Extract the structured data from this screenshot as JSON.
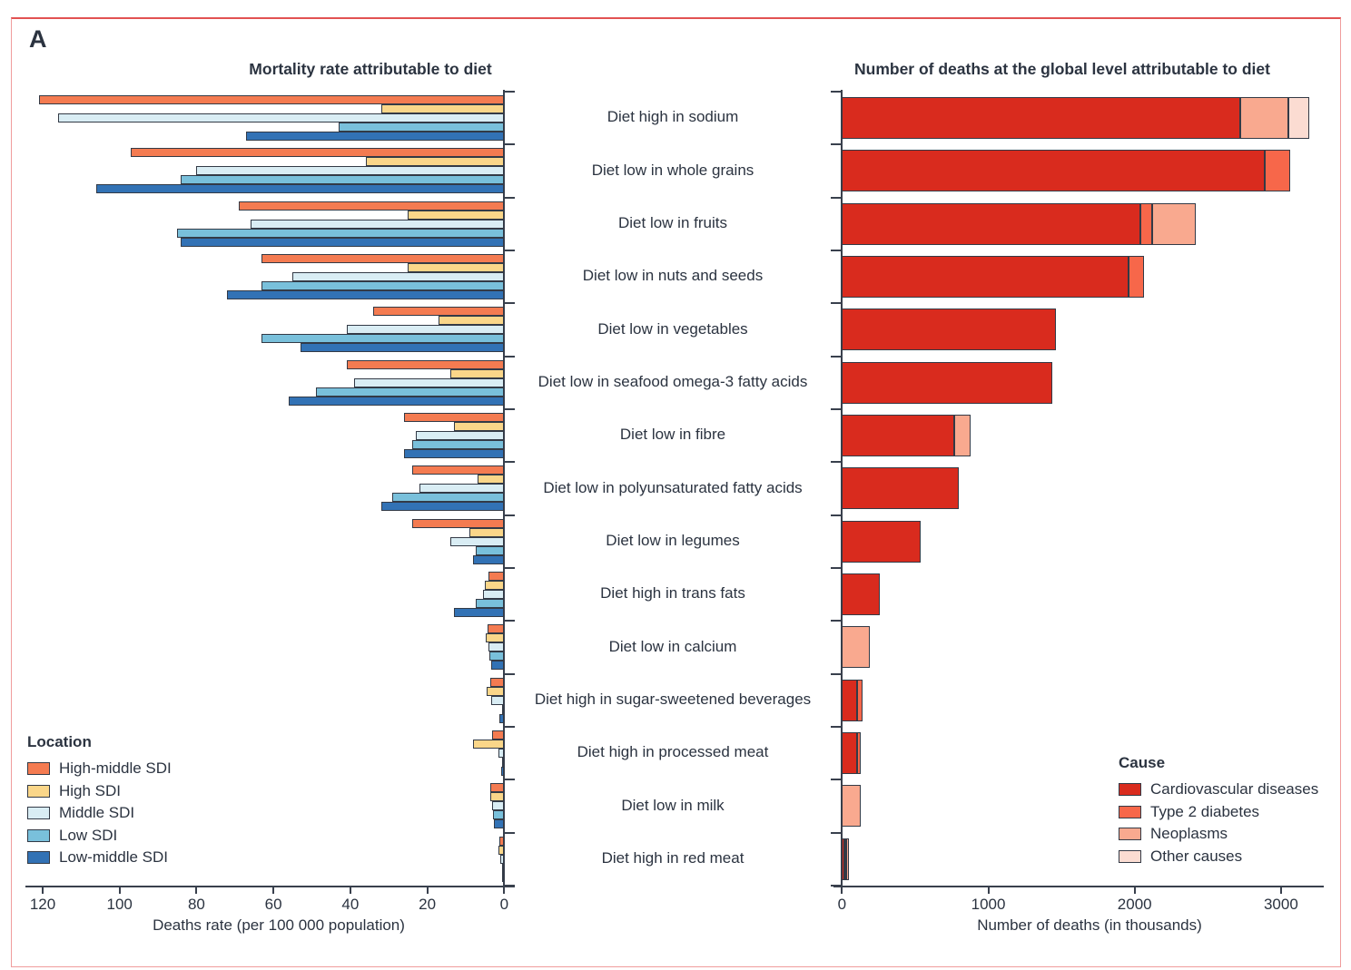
{
  "panel_label": "A",
  "categories": [
    "Diet high in sodium",
    "Diet low in whole grains",
    "Diet low in fruits",
    "Diet low in nuts and seeds",
    "Diet low in vegetables",
    "Diet low in seafood omega-3 fatty acids",
    "Diet low in fibre",
    "Diet low in polyunsaturated fatty acids",
    "Diet low in legumes",
    "Diet high in trans fats",
    "Diet low in calcium",
    "Diet high in sugar-sweetened beverages",
    "Diet high in processed meat",
    "Diet low in milk",
    "Diet high in red meat"
  ],
  "chart_data": [
    {
      "type": "bar",
      "orientation": "horizontal",
      "direction": "right-to-left",
      "title": "Mortality rate attributable to diet",
      "xlabel": "Deaths rate (per 100 000 population)",
      "xticks": [
        120,
        100,
        80,
        60,
        40,
        20,
        0
      ],
      "xlim": [
        0,
        120
      ],
      "legend_title": "Location",
      "grid": false,
      "series": [
        {
          "name": "High-middle SDI",
          "color": "#F47B51",
          "values": [
            121,
            97,
            69,
            63,
            34,
            41,
            26,
            24,
            24,
            4,
            4.3,
            3.7,
            3.2,
            3.5,
            1.2
          ]
        },
        {
          "name": "High SDI",
          "color": "#FAD689",
          "values": [
            32,
            36,
            25,
            25,
            17,
            14,
            13,
            7,
            9,
            5,
            4.7,
            4.6,
            8,
            3.5,
            1.6
          ]
        },
        {
          "name": "Middle SDI",
          "color": "#D9EDF4",
          "values": [
            116,
            80,
            66,
            55,
            41,
            39,
            23,
            22,
            14,
            5.5,
            4,
            3.3,
            1.5,
            3.2,
            0.9
          ]
        },
        {
          "name": "Low SDI",
          "color": "#79C0DB",
          "values": [
            43,
            84,
            85,
            63,
            63,
            49,
            24,
            29,
            7.5,
            7.5,
            3.9,
            0.4,
            0.3,
            3,
            0.3
          ]
        },
        {
          "name": "Low-middle SDI",
          "color": "#3272B5",
          "values": [
            67,
            106,
            84,
            72,
            53,
            56,
            26,
            32,
            8,
            13,
            3.4,
            1.3,
            0.7,
            2.6,
            0.6
          ]
        }
      ]
    },
    {
      "type": "stacked-bar",
      "orientation": "horizontal",
      "direction": "left-to-right",
      "title": "Number of deaths at the global level attributable to diet",
      "xlabel": "Number of deaths (in thousands)",
      "xticks": [
        0,
        1000,
        2000,
        3000
      ],
      "xlim": [
        0,
        3290
      ],
      "legend_title": "Cause",
      "grid": false,
      "series": [
        {
          "name": "Cardiovascular diseases",
          "color": "#D92B1E",
          "values": [
            2720,
            2890,
            2040,
            1960,
            1460,
            1440,
            770,
            800,
            540,
            260,
            0,
            105,
            100,
            0,
            8
          ]
        },
        {
          "name": "Type 2 diabetes",
          "color": "#F7674A",
          "values": [
            0,
            170,
            80,
            105,
            0,
            0,
            0,
            0,
            0,
            0,
            0,
            35,
            30,
            0,
            12
          ]
        },
        {
          "name": "Neoplasms",
          "color": "#F9A98F",
          "values": [
            330,
            0,
            300,
            0,
            0,
            0,
            110,
            0,
            0,
            0,
            190,
            0,
            0,
            125,
            13
          ]
        },
        {
          "name": "Other causes",
          "color": "#FBDCD2",
          "values": [
            140,
            0,
            0,
            0,
            0,
            0,
            0,
            0,
            0,
            0,
            0,
            0,
            0,
            0,
            0
          ]
        }
      ]
    }
  ]
}
